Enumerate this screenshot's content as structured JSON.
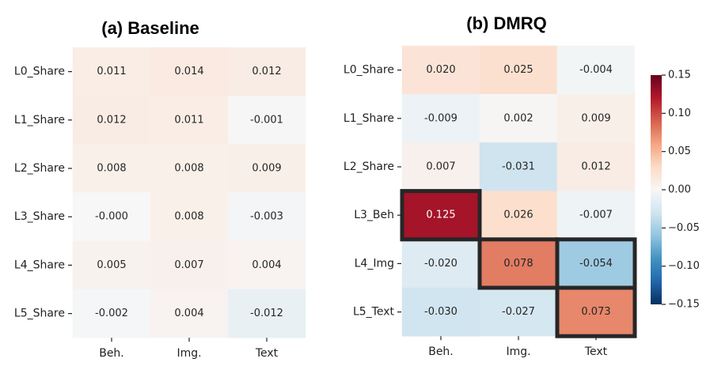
{
  "chart_data": [
    {
      "type": "heatmap",
      "title": "(a)  Baseline",
      "rows": [
        "L0_Share",
        "L1_Share",
        "L2_Share",
        "L3_Share",
        "L4_Share",
        "L5_Share"
      ],
      "columns": [
        "Beh.",
        "Img.",
        "Text"
      ],
      "values": [
        [
          0.011,
          0.014,
          0.012
        ],
        [
          0.012,
          0.011,
          -0.001
        ],
        [
          0.008,
          0.008,
          0.009
        ],
        [
          -0.0,
          0.008,
          -0.003
        ],
        [
          0.005,
          0.007,
          0.004
        ],
        [
          -0.002,
          0.004,
          -0.012
        ]
      ],
      "labels": [
        [
          "0.011",
          "0.014",
          "0.012"
        ],
        [
          "0.012",
          "0.011",
          "-0.001"
        ],
        [
          "0.008",
          "0.008",
          "0.009"
        ],
        [
          "-0.000",
          "0.008",
          "-0.003"
        ],
        [
          "0.005",
          "0.007",
          "0.004"
        ],
        [
          "-0.002",
          "0.004",
          "-0.012"
        ]
      ],
      "highlighted": []
    },
    {
      "type": "heatmap",
      "title": "(b)  DMRQ",
      "rows": [
        "L0_Share",
        "L1_Share",
        "L2_Share",
        "L3_Beh",
        "L4_Img",
        "L5_Text"
      ],
      "columns": [
        "Beh.",
        "Img.",
        "Text"
      ],
      "values": [
        [
          0.02,
          0.025,
          -0.004
        ],
        [
          -0.009,
          0.002,
          0.009
        ],
        [
          0.007,
          -0.031,
          0.012
        ],
        [
          0.125,
          0.026,
          -0.007
        ],
        [
          -0.02,
          0.078,
          -0.054
        ],
        [
          -0.03,
          -0.027,
          0.073
        ]
      ],
      "labels": [
        [
          "0.020",
          "0.025",
          "-0.004"
        ],
        [
          "-0.009",
          "0.002",
          "0.009"
        ],
        [
          "0.007",
          "-0.031",
          "0.012"
        ],
        [
          "0.125",
          "0.026",
          "-0.007"
        ],
        [
          "-0.020",
          "0.078",
          "-0.054"
        ],
        [
          "-0.030",
          "-0.027",
          "0.073"
        ]
      ],
      "highlighted": [
        [
          3,
          0
        ],
        [
          4,
          1
        ],
        [
          4,
          2
        ],
        [
          5,
          2
        ]
      ]
    }
  ],
  "colorbar": {
    "range": [
      -0.15,
      0.15
    ],
    "ticks": [
      0.15,
      0.1,
      0.05,
      0.0,
      -0.05,
      -0.1,
      -0.15
    ],
    "tick_labels": [
      "0.15",
      "0.10",
      "0.05",
      "0.00",
      "−0.05",
      "−0.10",
      "−0.15"
    ],
    "colormap": "RdBu_r"
  }
}
